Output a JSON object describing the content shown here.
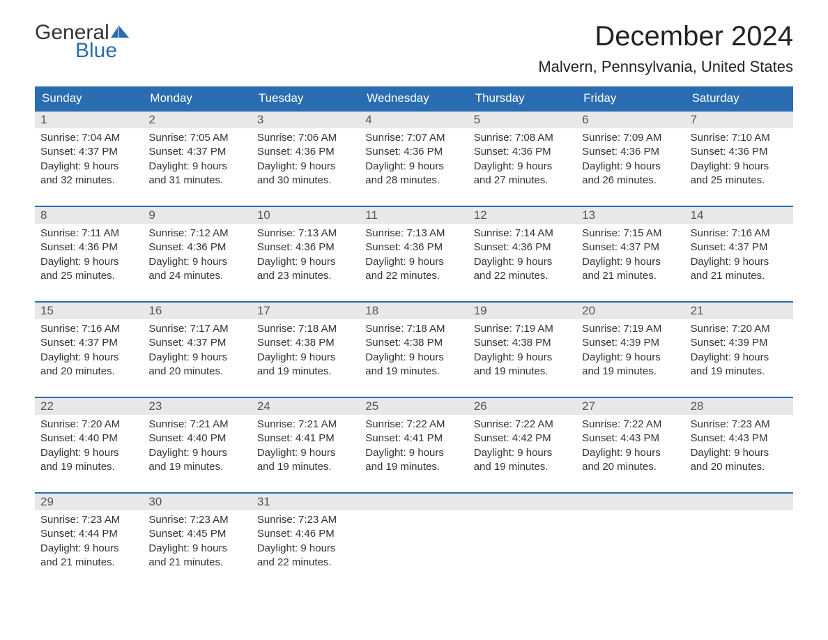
{
  "logo": {
    "text_general": "General",
    "text_blue": "Blue",
    "flag_color": "#2a6cb0"
  },
  "header": {
    "month_title": "December 2024",
    "location": "Malvern, Pennsylvania, United States"
  },
  "colors": {
    "header_bg": "#2a6cb0",
    "header_text": "#ffffff",
    "daynum_bg": "#e8e8e8",
    "daynum_text": "#555555",
    "body_text": "#333333",
    "row_border": "#2a6cb0"
  },
  "weekdays": [
    "Sunday",
    "Monday",
    "Tuesday",
    "Wednesday",
    "Thursday",
    "Friday",
    "Saturday"
  ],
  "weeks": [
    [
      {
        "day": "1",
        "sunrise": "7:04 AM",
        "sunset": "4:37 PM",
        "daylight": "9 hours and 32 minutes."
      },
      {
        "day": "2",
        "sunrise": "7:05 AM",
        "sunset": "4:37 PM",
        "daylight": "9 hours and 31 minutes."
      },
      {
        "day": "3",
        "sunrise": "7:06 AM",
        "sunset": "4:36 PM",
        "daylight": "9 hours and 30 minutes."
      },
      {
        "day": "4",
        "sunrise": "7:07 AM",
        "sunset": "4:36 PM",
        "daylight": "9 hours and 28 minutes."
      },
      {
        "day": "5",
        "sunrise": "7:08 AM",
        "sunset": "4:36 PM",
        "daylight": "9 hours and 27 minutes."
      },
      {
        "day": "6",
        "sunrise": "7:09 AM",
        "sunset": "4:36 PM",
        "daylight": "9 hours and 26 minutes."
      },
      {
        "day": "7",
        "sunrise": "7:10 AM",
        "sunset": "4:36 PM",
        "daylight": "9 hours and 25 minutes."
      }
    ],
    [
      {
        "day": "8",
        "sunrise": "7:11 AM",
        "sunset": "4:36 PM",
        "daylight": "9 hours and 25 minutes."
      },
      {
        "day": "9",
        "sunrise": "7:12 AM",
        "sunset": "4:36 PM",
        "daylight": "9 hours and 24 minutes."
      },
      {
        "day": "10",
        "sunrise": "7:13 AM",
        "sunset": "4:36 PM",
        "daylight": "9 hours and 23 minutes."
      },
      {
        "day": "11",
        "sunrise": "7:13 AM",
        "sunset": "4:36 PM",
        "daylight": "9 hours and 22 minutes."
      },
      {
        "day": "12",
        "sunrise": "7:14 AM",
        "sunset": "4:36 PM",
        "daylight": "9 hours and 22 minutes."
      },
      {
        "day": "13",
        "sunrise": "7:15 AM",
        "sunset": "4:37 PM",
        "daylight": "9 hours and 21 minutes."
      },
      {
        "day": "14",
        "sunrise": "7:16 AM",
        "sunset": "4:37 PM",
        "daylight": "9 hours and 21 minutes."
      }
    ],
    [
      {
        "day": "15",
        "sunrise": "7:16 AM",
        "sunset": "4:37 PM",
        "daylight": "9 hours and 20 minutes."
      },
      {
        "day": "16",
        "sunrise": "7:17 AM",
        "sunset": "4:37 PM",
        "daylight": "9 hours and 20 minutes."
      },
      {
        "day": "17",
        "sunrise": "7:18 AM",
        "sunset": "4:38 PM",
        "daylight": "9 hours and 19 minutes."
      },
      {
        "day": "18",
        "sunrise": "7:18 AM",
        "sunset": "4:38 PM",
        "daylight": "9 hours and 19 minutes."
      },
      {
        "day": "19",
        "sunrise": "7:19 AM",
        "sunset": "4:38 PM",
        "daylight": "9 hours and 19 minutes."
      },
      {
        "day": "20",
        "sunrise": "7:19 AM",
        "sunset": "4:39 PM",
        "daylight": "9 hours and 19 minutes."
      },
      {
        "day": "21",
        "sunrise": "7:20 AM",
        "sunset": "4:39 PM",
        "daylight": "9 hours and 19 minutes."
      }
    ],
    [
      {
        "day": "22",
        "sunrise": "7:20 AM",
        "sunset": "4:40 PM",
        "daylight": "9 hours and 19 minutes."
      },
      {
        "day": "23",
        "sunrise": "7:21 AM",
        "sunset": "4:40 PM",
        "daylight": "9 hours and 19 minutes."
      },
      {
        "day": "24",
        "sunrise": "7:21 AM",
        "sunset": "4:41 PM",
        "daylight": "9 hours and 19 minutes."
      },
      {
        "day": "25",
        "sunrise": "7:22 AM",
        "sunset": "4:41 PM",
        "daylight": "9 hours and 19 minutes."
      },
      {
        "day": "26",
        "sunrise": "7:22 AM",
        "sunset": "4:42 PM",
        "daylight": "9 hours and 19 minutes."
      },
      {
        "day": "27",
        "sunrise": "7:22 AM",
        "sunset": "4:43 PM",
        "daylight": "9 hours and 20 minutes."
      },
      {
        "day": "28",
        "sunrise": "7:23 AM",
        "sunset": "4:43 PM",
        "daylight": "9 hours and 20 minutes."
      }
    ],
    [
      {
        "day": "29",
        "sunrise": "7:23 AM",
        "sunset": "4:44 PM",
        "daylight": "9 hours and 21 minutes."
      },
      {
        "day": "30",
        "sunrise": "7:23 AM",
        "sunset": "4:45 PM",
        "daylight": "9 hours and 21 minutes."
      },
      {
        "day": "31",
        "sunrise": "7:23 AM",
        "sunset": "4:46 PM",
        "daylight": "9 hours and 22 minutes."
      },
      null,
      null,
      null,
      null
    ]
  ],
  "labels": {
    "sunrise": "Sunrise: ",
    "sunset": "Sunset: ",
    "daylight": "Daylight: "
  }
}
